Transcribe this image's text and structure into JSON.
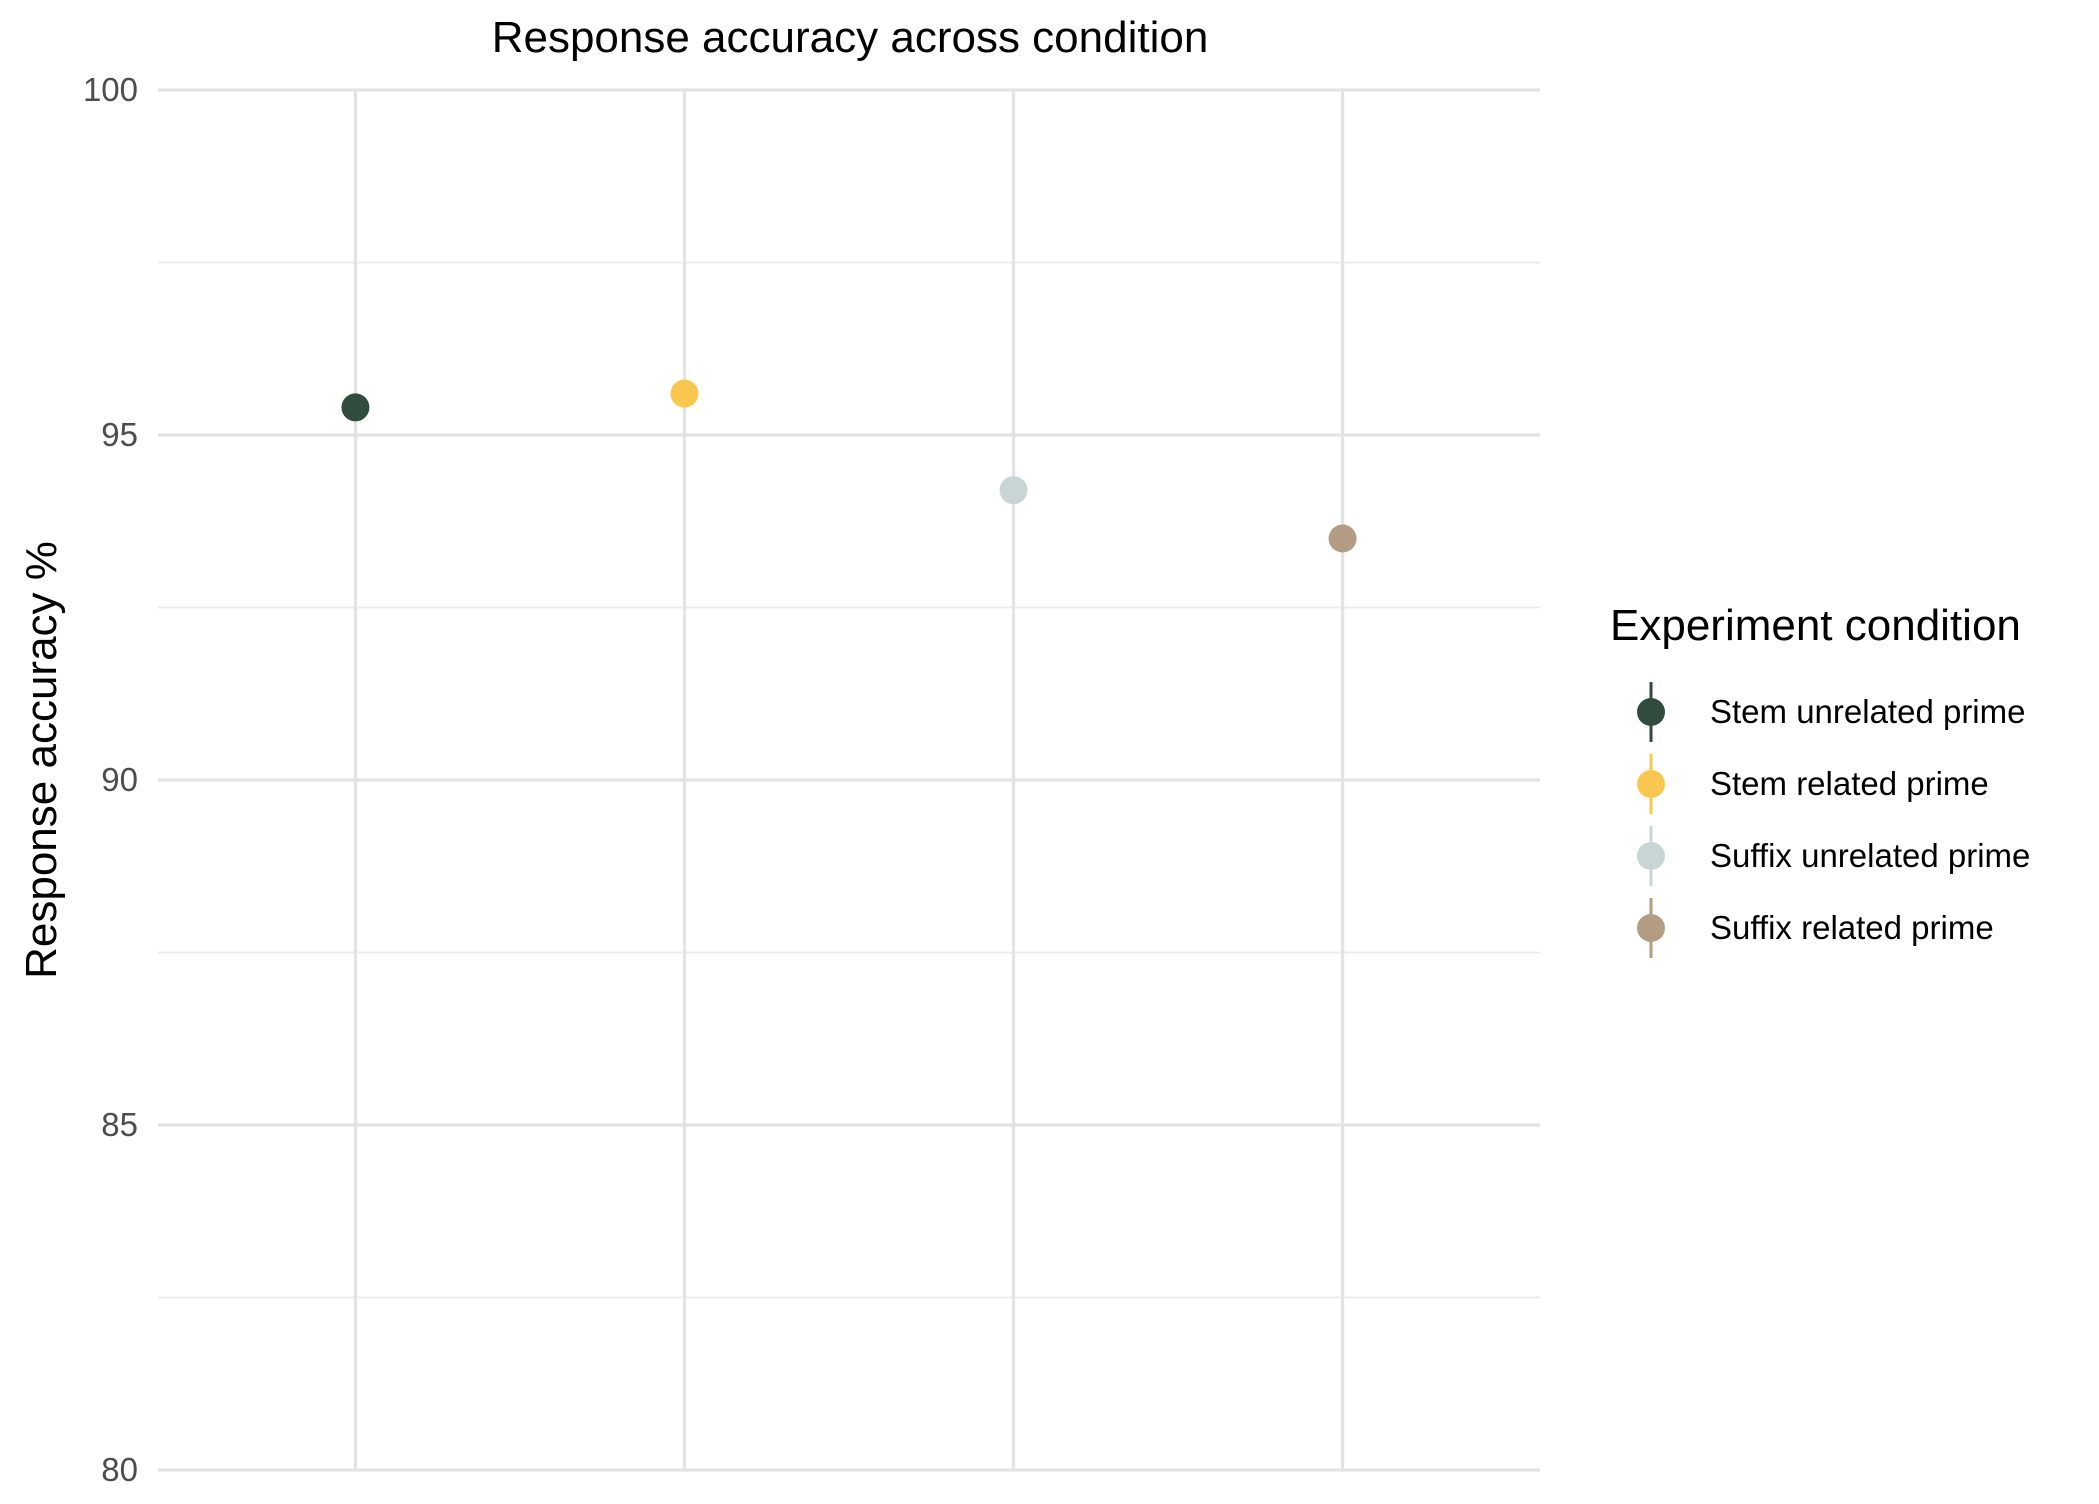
{
  "chart_data": {
    "type": "scatter",
    "title": "Response accuracy across condition",
    "xlabel": "",
    "ylabel": "Response accuracy %",
    "ylim": [
      80,
      100
    ],
    "y_ticks": [
      80,
      85,
      90,
      95,
      100
    ],
    "y_tick_labels": [
      "80",
      "85",
      "90",
      "95",
      "100"
    ],
    "grid": true,
    "legend": {
      "title": "Experiment condition",
      "position": "right"
    },
    "series": [
      {
        "name": "Stem unrelated prime",
        "x": 1,
        "y": 95.4,
        "error": [
          95.3,
          95.5
        ],
        "color": "#314B3E"
      },
      {
        "name": "Stem related prime",
        "x": 2,
        "y": 95.6,
        "error": [
          95.5,
          95.7
        ],
        "color": "#F9C74F"
      },
      {
        "name": "Suffix unrelated prime",
        "x": 3,
        "y": 94.2,
        "error": [
          94.1,
          94.3
        ],
        "color": "#C8D5D4"
      },
      {
        "name": "Suffix related prime",
        "x": 4,
        "y": 93.5,
        "error": [
          93.3,
          93.7
        ],
        "color": "#B49C84"
      }
    ]
  }
}
